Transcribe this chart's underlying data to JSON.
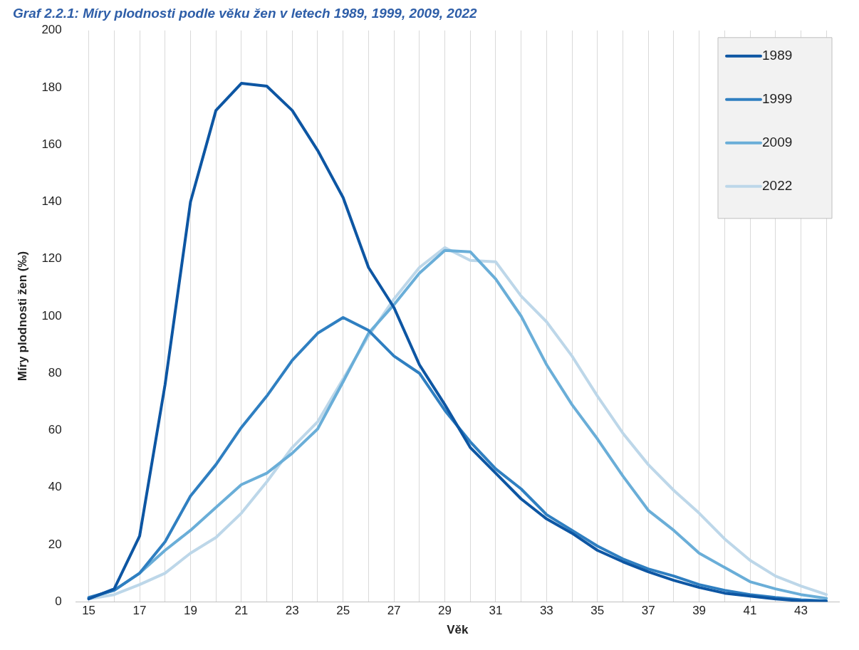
{
  "chart_data": {
    "type": "line",
    "title": "Graf 2.2.1: Míry plodnosti podle věku žen v letech 1989, 1999, 2009, 2022",
    "xlabel": "Věk",
    "ylabel": "Míry plodnosti žen (‰)",
    "x": [
      15,
      16,
      17,
      18,
      19,
      20,
      21,
      22,
      23,
      24,
      25,
      26,
      27,
      28,
      29,
      30,
      31,
      32,
      33,
      34,
      35,
      36,
      37,
      38,
      39,
      40,
      41,
      42,
      43,
      44
    ],
    "xlim": [
      14.5,
      44.5
    ],
    "xticks": [
      15,
      {
        "value": 16,
        "label": null
      },
      17,
      {
        "value": 18,
        "label": null
      },
      19,
      {
        "value": 20,
        "label": null
      },
      21,
      {
        "value": 22,
        "label": null
      },
      23,
      {
        "value": 24,
        "label": null
      },
      25,
      {
        "value": 26,
        "label": null
      },
      27,
      {
        "value": 28,
        "label": null
      },
      29,
      {
        "value": 30,
        "label": null
      },
      31,
      {
        "value": 32,
        "label": null
      },
      33,
      {
        "value": 34,
        "label": null
      },
      35,
      {
        "value": 36,
        "label": null
      },
      37,
      {
        "value": 38,
        "label": null
      },
      39,
      {
        "value": 40,
        "label": null
      },
      41,
      {
        "value": 42,
        "label": null
      },
      43,
      {
        "value": 44,
        "label": null
      }
    ],
    "ylim": [
      0,
      200
    ],
    "yticks": [
      0,
      20,
      40,
      60,
      80,
      100,
      120,
      140,
      160,
      180,
      200
    ],
    "grid": "x",
    "legend": "top right",
    "marker": "none",
    "line_style": "solid",
    "series": [
      {
        "name": "1989",
        "color": "#0d56a3",
        "values": [
          1,
          4.5,
          23,
          76,
          140,
          172,
          181.5,
          180.5,
          172,
          158,
          141.5,
          117,
          103,
          83,
          69,
          54,
          45,
          36,
          29,
          24,
          18,
          14,
          10.5,
          7.5,
          5,
          3,
          2,
          1,
          0.3,
          0.1
        ]
      },
      {
        "name": "1999",
        "color": "#2f7fc1",
        "values": [
          1.5,
          4,
          10,
          21,
          37,
          48,
          61,
          72,
          84.5,
          94,
          99.5,
          95,
          86,
          80,
          67,
          56,
          46.5,
          39.5,
          30.5,
          25,
          19.5,
          15,
          11.5,
          9,
          6,
          4,
          2.5,
          1.5,
          0.7,
          0.3
        ]
      },
      {
        "name": "2009",
        "color": "#6aaed8",
        "values": [
          1.2,
          4,
          10,
          18,
          25,
          33,
          41,
          45,
          52,
          60.5,
          77,
          94,
          104,
          115,
          123,
          122.5,
          113,
          100,
          83,
          69,
          57,
          44,
          32,
          25,
          17,
          12,
          7,
          4.5,
          2.5,
          1.2
        ]
      },
      {
        "name": "2022",
        "color": "#bdd7e9",
        "values": [
          1,
          2.5,
          6,
          10,
          17,
          22.5,
          31,
          42,
          54,
          63,
          78,
          93,
          106,
          117,
          124,
          119.5,
          119,
          107,
          98,
          86,
          72,
          59,
          48,
          39,
          31,
          22,
          14.5,
          9,
          5.5,
          2.5
        ]
      }
    ]
  }
}
